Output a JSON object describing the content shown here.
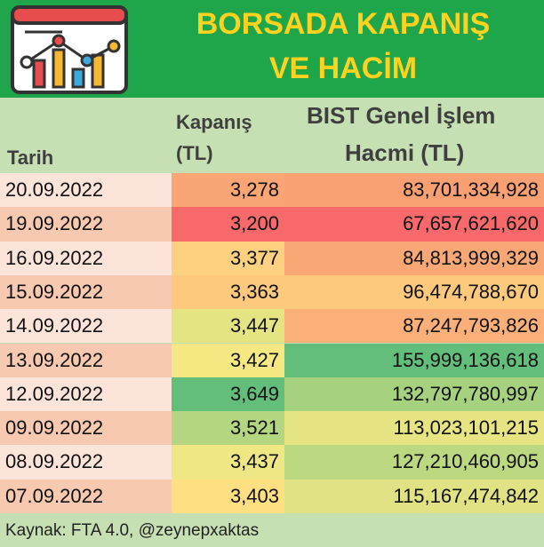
{
  "header": {
    "title": [
      "BORSADA KAPANIŞ",
      "VE HACİM"
    ]
  },
  "table": {
    "columns": [
      [
        "Tarih"
      ],
      [
        "Kapanış",
        "(TL)"
      ],
      [
        "BIST Genel İşlem",
        "Hacmi (TL)"
      ]
    ],
    "rows": [
      [
        "20.09.2022",
        "3,278",
        "83,701,334,928"
      ],
      [
        "19.09.2022",
        "3,200",
        "67,657,621,620"
      ],
      [
        "16.09.2022",
        "3,377",
        "84,813,999,329"
      ],
      [
        "15.09.2022",
        "3,363",
        "96,474,788,670"
      ],
      [
        "14.09.2022",
        "3,447",
        "87,247,793,826"
      ],
      [
        "13.09.2022",
        "3,427",
        "155,999,136,618"
      ],
      [
        "12.09.2022",
        "3,649",
        "132,797,780,997"
      ],
      [
        "09.09.2022",
        "3,521",
        "113,023,101,215"
      ],
      [
        "08.09.2022",
        "3,437",
        "127,210,460,905"
      ],
      [
        "07.09.2022",
        "3,403",
        "115,167,474,842"
      ]
    ],
    "colors": [
      [
        "#fde4da",
        "#f9a574",
        "#f9a073"
      ],
      [
        "#f6c9b0",
        "#f8696b",
        "#f8696b"
      ],
      [
        "#fde4da",
        "#fdd17f",
        "#f9a875"
      ],
      [
        "#f6c9b0",
        "#fcc97d",
        "#fdca7d"
      ],
      [
        "#fde4da",
        "#e4e483",
        "#fbb079"
      ],
      [
        "#f6c9b0",
        "#f6e984",
        "#63be7b"
      ],
      [
        "#fde4da",
        "#63be7b",
        "#a6d27f"
      ],
      [
        "#f6c9b0",
        "#b5d680",
        "#e7e483"
      ],
      [
        "#fde4da",
        "#eee784",
        "#bcd881"
      ],
      [
        "#f6c9b0",
        "#fee082",
        "#e0e283"
      ]
    ]
  },
  "footer": {
    "source": "Kaynak: FTA 4.0, @zeynepxaktas"
  }
}
